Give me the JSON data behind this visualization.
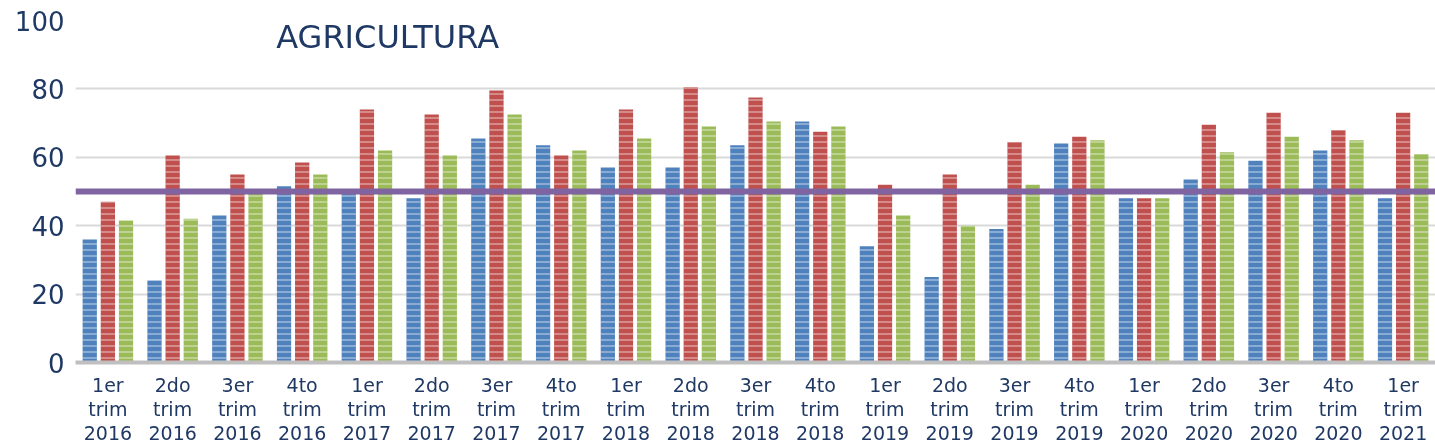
{
  "chart_data": {
    "type": "bar",
    "title": "AGRICULTURA",
    "categories": [
      "1er\ntrim\n2016",
      "2do\ntrim\n2016",
      "3er\ntrim\n2016",
      "4to\ntrim\n2016",
      "1er\ntrim\n2017",
      "2do\ntrim\n2017",
      "3er\ntrim\n2017",
      "4to\ntrim\n2017",
      "1er\ntrim\n2018",
      "2do\ntrim\n2018",
      "3er\ntrim\n2018",
      "4to\ntrim\n2018",
      "1er\ntrim\n2019",
      "2do\ntrim\n2019",
      "3er\ntrim\n2019",
      "4to\ntrim\n2019",
      "1er\ntrim\n2020",
      "2do\ntrim\n2020",
      "3er\ntrim\n2020",
      "4to\ntrim\n2020",
      "1er\ntrim\n2021"
    ],
    "series": [
      {
        "color": "#4f81bd",
        "values": [
          36,
          24,
          43,
          51.5,
          50,
          48,
          65.5,
          63.5,
          57,
          57,
          63.5,
          70.5,
          34,
          25,
          39,
          64,
          48,
          53.5,
          59,
          62,
          48
        ]
      },
      {
        "color": "#c0504d",
        "values": [
          47,
          60.5,
          55,
          58.5,
          74,
          72.5,
          79.5,
          60.5,
          74,
          80.5,
          77.5,
          67.5,
          52,
          55,
          64.5,
          66,
          48,
          69.5,
          73,
          68,
          73
        ]
      },
      {
        "color": "#9bbb59",
        "values": [
          41.5,
          42,
          50,
          55,
          62,
          60.5,
          72.5,
          62,
          65.5,
          69,
          70.5,
          69,
          43,
          40,
          52,
          65,
          48,
          61.5,
          66,
          65,
          61
        ]
      }
    ],
    "ref_lines": [
      {
        "axis": "y",
        "value": 50,
        "color": "#8064a2"
      }
    ],
    "ylim": [
      0,
      100
    ],
    "yticks": [
      0,
      20,
      40,
      60,
      80,
      100
    ],
    "grid": "y"
  }
}
